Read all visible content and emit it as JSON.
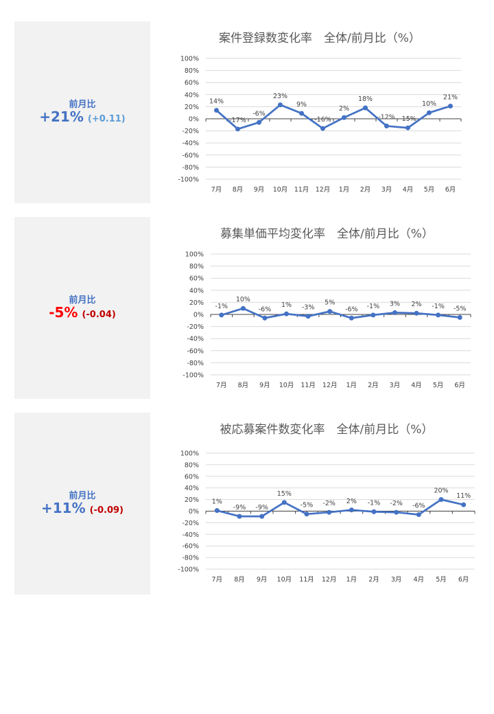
{
  "colors": {
    "line": "#4472c4",
    "grid": "#d9d9d9",
    "axis": "#404040",
    "title": "#595959",
    "text": "#404040",
    "panel": "#f2f2f2",
    "negative": "#ff0000",
    "small_negative": "#c00000",
    "small_positive": "#4f81bd"
  },
  "panels": [
    {
      "label": "前月比",
      "value": "+21%",
      "delta": "(+0.11)",
      "value_color": "#4472c4",
      "delta_color": "#5b9bd5"
    },
    {
      "label": "前月比",
      "value": "-5%",
      "delta": "(-0.04)",
      "value_color": "#ff0000",
      "delta_color": "#c00000"
    },
    {
      "label": "前月比",
      "value": "+11%",
      "delta": "(-0.09)",
      "value_color": "#4472c4",
      "delta_color": "#c00000"
    }
  ],
  "chart_data": [
    {
      "type": "line",
      "title": "案件登録数変化率　全体/前月比（%）",
      "categories": [
        "7月",
        "8月",
        "9月",
        "10月",
        "11月",
        "12月",
        "1月",
        "2月",
        "3月",
        "4月",
        "5月",
        "6月"
      ],
      "values": [
        14,
        -17,
        -6,
        23,
        9,
        -16,
        2,
        18,
        -12,
        -15,
        10,
        21
      ],
      "data_labels": [
        "14%",
        "-17%",
        "-6%",
        "23%",
        "9%",
        "-16%",
        "2%",
        "18%",
        "-12%",
        "-15%",
        "10%",
        "21%"
      ],
      "yticks": [
        "100%",
        "80%",
        "60%",
        "40%",
        "20%",
        "0%",
        "-20%",
        "-40%",
        "-60%",
        "-80%",
        "-100%"
      ],
      "ylim": [
        -100,
        100
      ],
      "grid": true,
      "legend": "none"
    },
    {
      "type": "line",
      "title": "募集単価平均変化率　全体/前月比（%）",
      "categories": [
        "7月",
        "8月",
        "9月",
        "10月",
        "11月",
        "12月",
        "1月",
        "2月",
        "3月",
        "4月",
        "5月",
        "6月"
      ],
      "values": [
        -1,
        10,
        -6,
        1,
        -3,
        5,
        -6,
        -1,
        3,
        2,
        -1,
        -5
      ],
      "data_labels": [
        "-1%",
        "10%",
        "-6%",
        "1%",
        "-3%",
        "5%",
        "-6%",
        "-1%",
        "3%",
        "2%",
        "-1%",
        "-5%"
      ],
      "yticks": [
        "100%",
        "80%",
        "60%",
        "40%",
        "20%",
        "0%",
        "-20%",
        "-40%",
        "-60%",
        "-80%",
        "-100%"
      ],
      "ylim": [
        -100,
        100
      ],
      "grid": true,
      "legend": "none"
    },
    {
      "type": "line",
      "title": "被応募案件数変化率　全体/前月比（%）",
      "categories": [
        "7月",
        "8月",
        "9月",
        "10月",
        "11月",
        "12月",
        "1月",
        "2月",
        "3月",
        "4月",
        "5月",
        "6月"
      ],
      "values": [
        1,
        -9,
        -9,
        15,
        -5,
        -2,
        2,
        -1,
        -2,
        -6,
        20,
        11
      ],
      "data_labels": [
        "1%",
        "-9%",
        "-9%",
        "15%",
        "-5%",
        "-2%",
        "2%",
        "-1%",
        "-2%",
        "-6%",
        "20%",
        "11%"
      ],
      "yticks": [
        "100%",
        "80%",
        "60%",
        "40%",
        "20%",
        "0%",
        "-20%",
        "-40%",
        "-60%",
        "-80%",
        "-100%"
      ],
      "ylim": [
        -100,
        100
      ],
      "grid": true,
      "legend": "none"
    }
  ]
}
